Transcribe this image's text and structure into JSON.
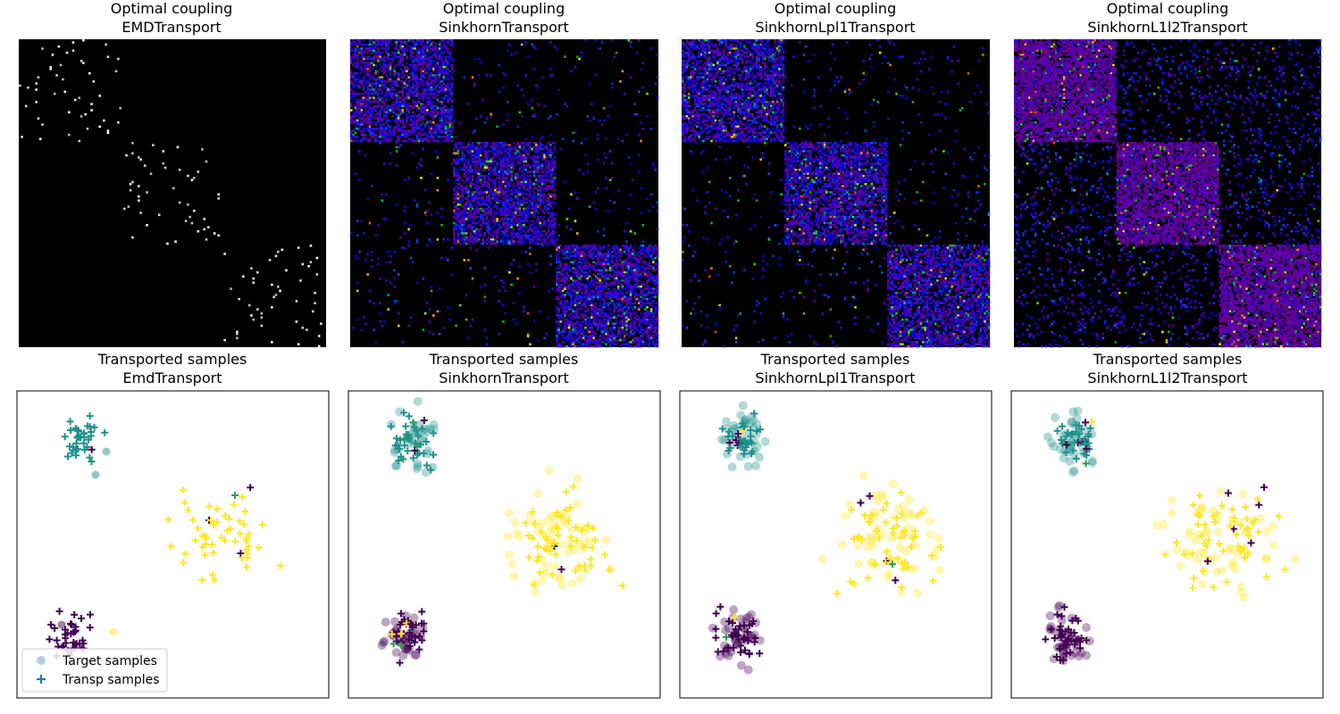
{
  "figure": {
    "coupling_row_label": "Optimal coupling",
    "transport_row_label": "Transported samples"
  },
  "legend": {
    "placement": "lower-left",
    "target_label": "Target samples",
    "transp_label": "Transp samples",
    "target_color": "#9ec3e0",
    "transp_color": "#1f77b4"
  },
  "colors": {
    "class_0": "#440154",
    "class_1": "#21918c",
    "class_2": "#fde725",
    "class_mid": "#2a9d4b"
  },
  "chart_data": [
    {
      "type": "heatmap",
      "title_line1": "Optimal coupling",
      "title_line2": "EMDTransport",
      "colormap": "gray",
      "block_structure": "sparse"
    },
    {
      "type": "heatmap",
      "title_line1": "Optimal coupling",
      "title_line2": "SinkhornTransport",
      "colormap": "nipy_spectral",
      "block_structure": "three-diagonal-blocks"
    },
    {
      "type": "heatmap",
      "title_line1": "Optimal coupling",
      "title_line2": "SinkhornLpl1Transport",
      "colormap": "nipy_spectral",
      "block_structure": "three-diagonal-blocks"
    },
    {
      "type": "heatmap",
      "title_line1": "Optimal coupling",
      "title_line2": "SinkhornL1l2Transport",
      "colormap": "nipy_spectral",
      "block_structure": "three-diagonal-blocks-dense"
    },
    {
      "type": "scatter",
      "title_line1": "Transported samples",
      "title_line2": "EmdTransport",
      "series": [
        {
          "name": "Target samples"
        },
        {
          "name": "Transp samples"
        }
      ],
      "legend": "lower-left"
    },
    {
      "type": "scatter",
      "title_line1": "Transported samples",
      "title_line2": "SinkhornTransport",
      "series": [
        {
          "name": "Target samples"
        },
        {
          "name": "Transp samples"
        }
      ]
    },
    {
      "type": "scatter",
      "title_line1": "Transported samples",
      "title_line2": "SinkhornLpl1Transport",
      "series": [
        {
          "name": "Target samples"
        },
        {
          "name": "Transp samples"
        }
      ]
    },
    {
      "type": "scatter",
      "title_line1": "Transported samples",
      "title_line2": "SinkhornL1l2Transport",
      "series": [
        {
          "name": "Target samples"
        },
        {
          "name": "Transp samples"
        }
      ]
    }
  ]
}
